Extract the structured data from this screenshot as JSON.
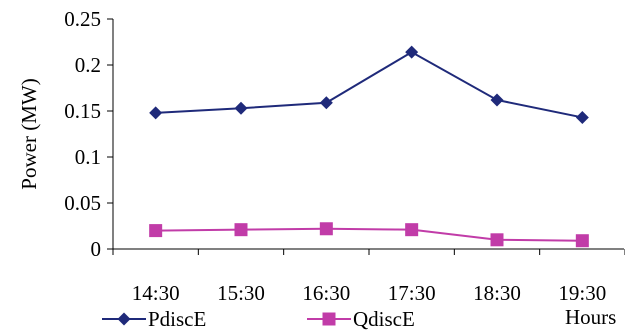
{
  "chart_data": {
    "type": "line",
    "categories": [
      "14:30",
      "15:30",
      "16:30",
      "17:30",
      "18:30",
      "19:30"
    ],
    "series": [
      {
        "name": "PdiscE",
        "values": [
          0.148,
          0.153,
          0.159,
          0.214,
          0.162,
          0.143
        ],
        "color": "#1F2A7A",
        "marker": "diamond"
      },
      {
        "name": "QdiscE",
        "values": [
          0.02,
          0.021,
          0.022,
          0.021,
          0.01,
          0.009
        ],
        "color": "#C13CA8",
        "marker": "square"
      }
    ],
    "title": "",
    "xlabel": "Hours",
    "ylabel": "Power (MW)",
    "ylim": [
      0,
      0.25
    ],
    "yticks": [
      "0",
      "0.05",
      "0.1",
      "0.15",
      "0.2",
      "0.25"
    ],
    "grid": false,
    "legend": "bottom-left"
  }
}
